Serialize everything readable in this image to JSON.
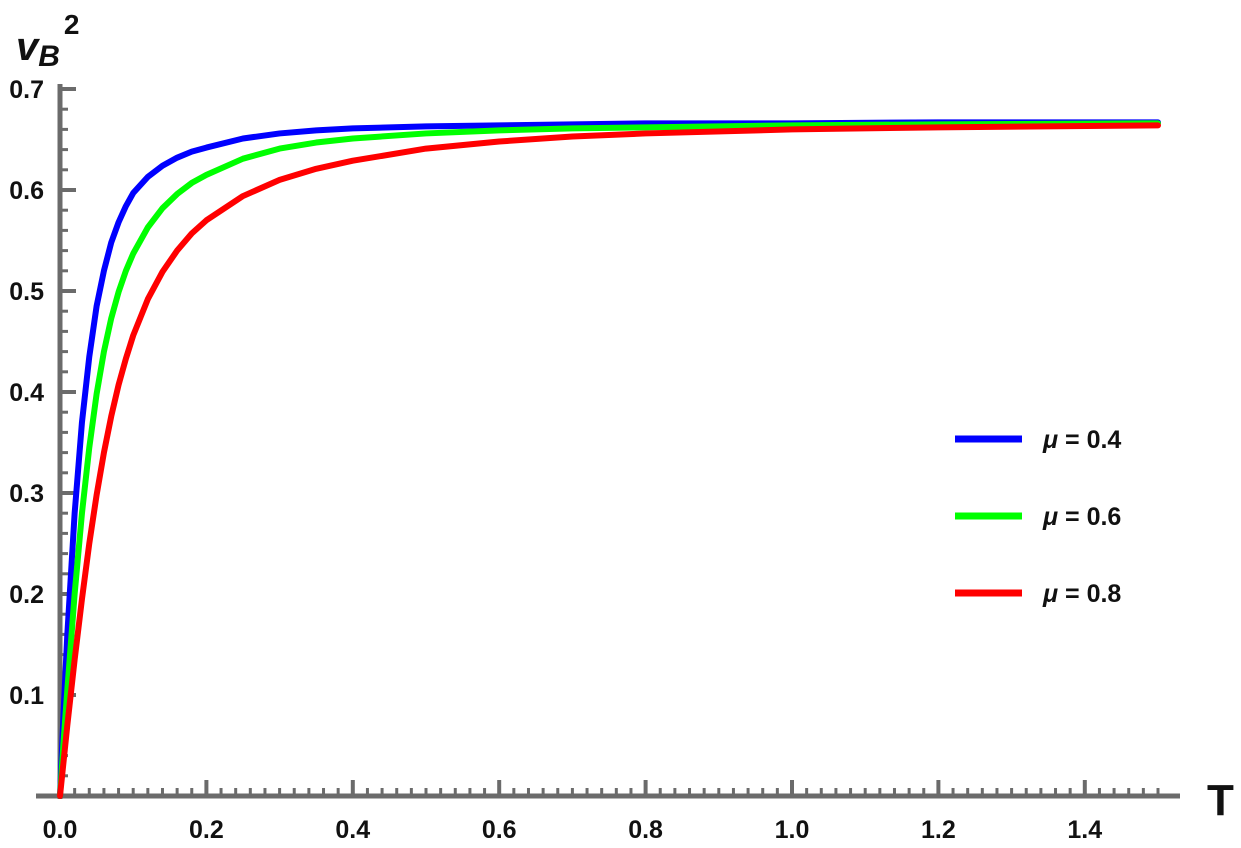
{
  "chart_data": {
    "type": "line",
    "title": "",
    "xlabel": "T",
    "ylabel": {
      "base": "v",
      "sub": "B",
      "sup": "2"
    },
    "xlim": [
      0,
      1.5
    ],
    "ylim": [
      0,
      0.7
    ],
    "x_ticks": [
      "0.0",
      "0.2",
      "0.4",
      "0.6",
      "0.8",
      "1.0",
      "1.2",
      "1.4"
    ],
    "x_tick_values": [
      0,
      0.2,
      0.4,
      0.6,
      0.8,
      1.0,
      1.2,
      1.4
    ],
    "y_ticks": [
      "0.1",
      "0.2",
      "0.3",
      "0.4",
      "0.5",
      "0.6",
      "0.7"
    ],
    "y_tick_values": [
      0.1,
      0.2,
      0.3,
      0.4,
      0.5,
      0.6,
      0.7
    ],
    "grid": false,
    "legend_position": "right",
    "series": [
      {
        "name": "μ = 0.4",
        "label_symbol": "μ",
        "label_value": "= 0.4",
        "color": "#0000ff",
        "x": [
          0,
          0.005,
          0.01,
          0.02,
          0.03,
          0.04,
          0.05,
          0.06,
          0.07,
          0.08,
          0.09,
          0.1,
          0.12,
          0.14,
          0.16,
          0.18,
          0.2,
          0.25,
          0.3,
          0.35,
          0.4,
          0.5,
          0.6,
          0.7,
          0.8,
          1.0,
          1.2,
          1.5
        ],
        "y": [
          0,
          0.085,
          0.16,
          0.28,
          0.37,
          0.435,
          0.485,
          0.52,
          0.548,
          0.568,
          0.584,
          0.597,
          0.613,
          0.624,
          0.632,
          0.638,
          0.642,
          0.651,
          0.656,
          0.659,
          0.661,
          0.663,
          0.664,
          0.665,
          0.666,
          0.666,
          0.667,
          0.667
        ]
      },
      {
        "name": "μ = 0.6",
        "label_symbol": "μ",
        "label_value": "= 0.6",
        "color": "#00ff00",
        "x": [
          0,
          0.005,
          0.01,
          0.02,
          0.03,
          0.04,
          0.05,
          0.06,
          0.07,
          0.08,
          0.09,
          0.1,
          0.12,
          0.14,
          0.16,
          0.18,
          0.2,
          0.25,
          0.3,
          0.35,
          0.4,
          0.5,
          0.6,
          0.7,
          0.8,
          1.0,
          1.2,
          1.5
        ],
        "y": [
          0,
          0.055,
          0.105,
          0.2,
          0.28,
          0.345,
          0.398,
          0.44,
          0.473,
          0.499,
          0.52,
          0.537,
          0.563,
          0.582,
          0.596,
          0.607,
          0.615,
          0.631,
          0.641,
          0.647,
          0.651,
          0.656,
          0.659,
          0.661,
          0.662,
          0.664,
          0.665,
          0.666
        ]
      },
      {
        "name": "μ = 0.8",
        "label_symbol": "μ",
        "label_value": "= 0.8",
        "color": "#ff0000",
        "x": [
          0,
          0.005,
          0.01,
          0.02,
          0.03,
          0.04,
          0.05,
          0.06,
          0.07,
          0.08,
          0.09,
          0.1,
          0.12,
          0.14,
          0.16,
          0.18,
          0.2,
          0.25,
          0.3,
          0.35,
          0.4,
          0.5,
          0.6,
          0.7,
          0.8,
          1.0,
          1.2,
          1.5
        ],
        "y": [
          0,
          0.035,
          0.07,
          0.135,
          0.195,
          0.25,
          0.298,
          0.34,
          0.376,
          0.407,
          0.433,
          0.456,
          0.492,
          0.519,
          0.54,
          0.557,
          0.57,
          0.594,
          0.61,
          0.621,
          0.629,
          0.641,
          0.648,
          0.653,
          0.656,
          0.66,
          0.662,
          0.664
        ]
      }
    ]
  }
}
